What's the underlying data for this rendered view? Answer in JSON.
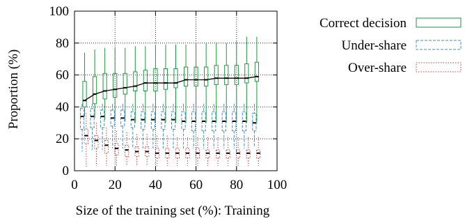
{
  "chart_data": {
    "type": "box",
    "xlabel": "Size of the training set (%): Training",
    "ylabel": "Proportion (%)",
    "xlim": [
      0,
      100
    ],
    "ylim": [
      0,
      100
    ],
    "x_ticks": [
      0,
      20,
      40,
      60,
      80,
      100
    ],
    "y_ticks": [
      0,
      20,
      40,
      60,
      80,
      100
    ],
    "grid": true,
    "legend_position": "right",
    "x": [
      5,
      10,
      15,
      20,
      25,
      30,
      35,
      40,
      45,
      50,
      55,
      60,
      65,
      70,
      75,
      80,
      85,
      90
    ],
    "series": [
      {
        "name": "Correct decision",
        "color": "#1a9a3a",
        "style": "solid",
        "offset": 0,
        "mean_line": true,
        "whisker_low": [
          34,
          33,
          32,
          32,
          31,
          30,
          30,
          30,
          30,
          30,
          30,
          30,
          30,
          30,
          30,
          30,
          30,
          30
        ],
        "q1": [
          40,
          42,
          45,
          46,
          48,
          50,
          50,
          50,
          51,
          52,
          53,
          53,
          53,
          54,
          54,
          54,
          55,
          56
        ],
        "median": [
          44,
          48,
          50,
          51,
          52,
          53,
          55,
          55,
          55,
          55,
          57,
          57,
          57,
          58,
          58,
          58,
          58,
          59
        ],
        "q3": [
          56,
          59,
          61,
          61,
          61,
          62,
          63,
          64,
          64,
          64,
          65,
          65,
          65,
          66,
          66,
          66,
          67,
          68
        ],
        "whisker_high": [
          74,
          76,
          77,
          77,
          77,
          78,
          78,
          79,
          79,
          79,
          79,
          80,
          80,
          80,
          80,
          81,
          84,
          84
        ]
      },
      {
        "name": "Under-share",
        "color": "#3d8fd1",
        "style": "dashed",
        "offset": -1.2,
        "mean_line": false,
        "whisker_low": [
          12,
          13,
          13,
          14,
          14,
          14,
          14,
          14,
          14,
          14,
          14,
          14,
          14,
          14,
          14,
          14,
          14,
          15
        ],
        "q1": [
          26,
          27,
          27,
          28,
          28,
          27,
          26,
          26,
          26,
          26,
          26,
          25,
          25,
          25,
          25,
          25,
          25,
          25
        ],
        "median": [
          34,
          34,
          34,
          33,
          33,
          32,
          32,
          32,
          32,
          32,
          31,
          31,
          31,
          31,
          31,
          31,
          31,
          30
        ],
        "q3": [
          39,
          39,
          38,
          38,
          38,
          37,
          37,
          37,
          37,
          37,
          37,
          37,
          37,
          37,
          37,
          37,
          37,
          36
        ],
        "whisker_high": [
          42,
          42,
          42,
          42,
          42,
          42,
          42,
          42,
          42,
          42,
          42,
          42,
          42,
          42,
          42,
          42,
          42,
          42
        ]
      },
      {
        "name": "Over-share",
        "color": "#d23a3a",
        "style": "dotted",
        "offset": 0.8,
        "mean_line": false,
        "whisker_low": [
          2,
          3,
          3,
          3,
          3,
          3,
          3,
          3,
          3,
          3,
          3,
          3,
          3,
          3,
          3,
          3,
          3,
          3
        ],
        "q1": [
          17,
          14,
          11,
          10,
          9,
          9,
          9,
          8,
          8,
          8,
          8,
          8,
          8,
          8,
          8,
          8,
          8,
          8
        ],
        "median": [
          22,
          19,
          16,
          14,
          13,
          12,
          12,
          11,
          11,
          11,
          11,
          11,
          11,
          11,
          11,
          11,
          11,
          11
        ],
        "q3": [
          26,
          22,
          19,
          17,
          16,
          15,
          15,
          14,
          14,
          14,
          14,
          14,
          13,
          13,
          13,
          13,
          13,
          13
        ],
        "whisker_high": [
          36,
          30,
          27,
          25,
          24,
          23,
          23,
          22,
          22,
          21,
          21,
          21,
          21,
          21,
          21,
          21,
          21,
          21
        ]
      }
    ]
  }
}
